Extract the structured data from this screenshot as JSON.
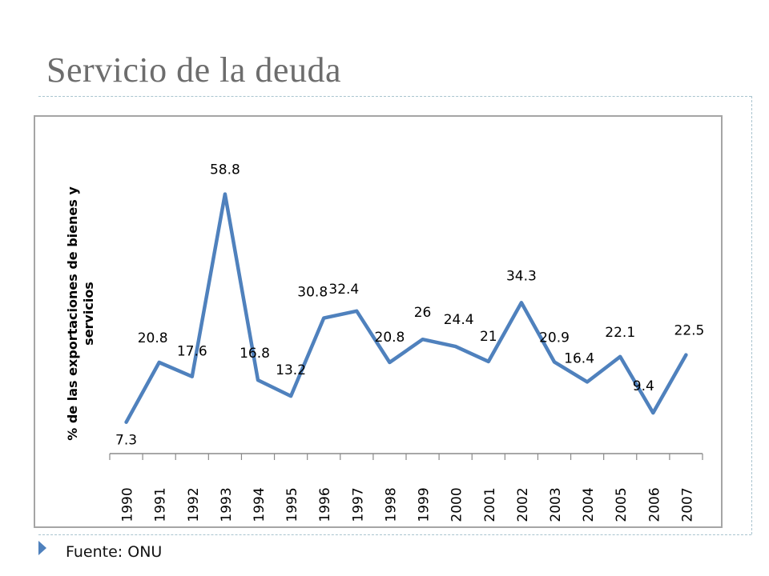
{
  "slide": {
    "title": "Servicio de la deuda",
    "source": "Fuente: ONU"
  },
  "chart_data": {
    "type": "line",
    "title": "",
    "xlabel": "",
    "ylabel": "% de las exportaciones de bienes y servicios",
    "categories": [
      "1990",
      "1991",
      "1992",
      "1993",
      "1994",
      "1995",
      "1996",
      "1997",
      "1998",
      "1999",
      "2000",
      "2001",
      "2002",
      "2003",
      "2004",
      "2005",
      "2006",
      "2007"
    ],
    "series": [
      {
        "name": "",
        "values": [
          7.3,
          20.8,
          17.6,
          58.8,
          16.8,
          13.2,
          30.8,
          32.4,
          20.8,
          26,
          24.4,
          21,
          34.3,
          20.9,
          16.4,
          22.1,
          9.4,
          22.5
        ],
        "labels": [
          "7.3",
          "20.8",
          "17.6",
          "58.8",
          "16.8",
          "13.2",
          "30.8",
          "32.4",
          "20.8",
          "26",
          "24.4",
          "21",
          "34.3",
          "20.9",
          "16.4",
          "22.1",
          "9.4",
          "22.5"
        ]
      }
    ],
    "ylim": [
      4,
      60
    ],
    "y_axis_visible": false,
    "grid": false,
    "legend": "none",
    "data_labels": true,
    "line_color": "#4f81bd"
  }
}
